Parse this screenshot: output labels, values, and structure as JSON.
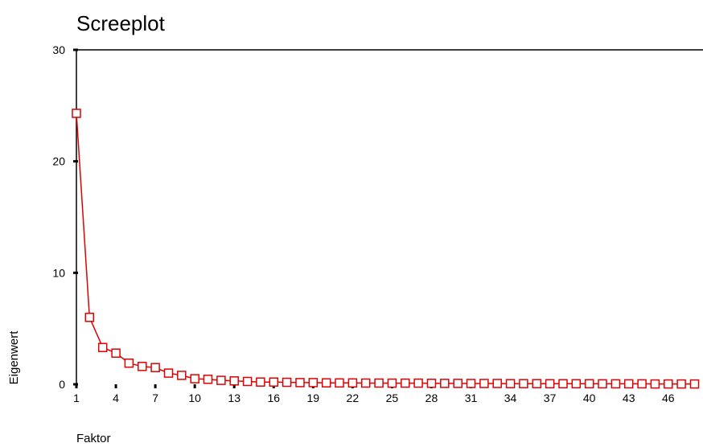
{
  "chart_data": {
    "type": "line",
    "title": "Screeplot",
    "xlabel": "Faktor",
    "ylabel": "Eigenwert",
    "ylim": [
      0,
      30
    ],
    "xlim": [
      1,
      48
    ],
    "y_ticks": [
      0,
      10,
      20,
      30
    ],
    "x_ticks": [
      1,
      4,
      7,
      10,
      13,
      16,
      19,
      22,
      25,
      28,
      31,
      34,
      37,
      40,
      43,
      46
    ],
    "grid": false,
    "line_color": "#e00000",
    "marker": "open-square",
    "series": [
      {
        "x": [
          1,
          2,
          3,
          4,
          5,
          6,
          7,
          8,
          9,
          10,
          11,
          12,
          13,
          14,
          15,
          16,
          17,
          18,
          19,
          20,
          21,
          22,
          23,
          24,
          25,
          26,
          27,
          28,
          29,
          30,
          31,
          32,
          33,
          34,
          35,
          36,
          37,
          38,
          39,
          40,
          41,
          42,
          43,
          44,
          45,
          46,
          47,
          48
        ],
        "values": [
          24.3,
          6.0,
          3.3,
          2.8,
          1.9,
          1.6,
          1.5,
          1.0,
          0.8,
          0.5,
          0.45,
          0.35,
          0.3,
          0.25,
          0.2,
          0.2,
          0.18,
          0.15,
          0.15,
          0.13,
          0.12,
          0.12,
          0.11,
          0.11,
          0.1,
          0.1,
          0.1,
          0.09,
          0.08,
          0.08,
          0.07,
          0.07,
          0.07,
          0.06,
          0.06,
          0.06,
          0.05,
          0.05,
          0.05,
          0.05,
          0.04,
          0.04,
          0.04,
          0.04,
          0.03,
          0.03,
          0.03,
          0.03
        ]
      }
    ]
  }
}
